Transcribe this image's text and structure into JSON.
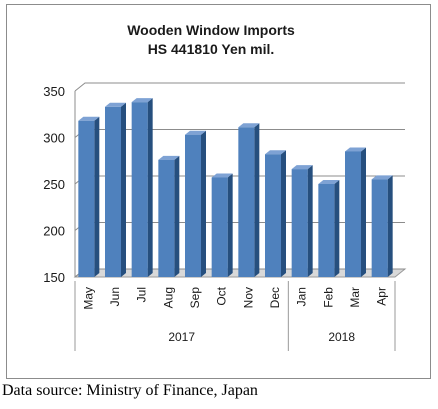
{
  "chart_data": {
    "type": "bar",
    "title": "Wooden Window Imports",
    "subtitle": "HS 441810 Yen mil.",
    "categories": [
      "May",
      "Jun",
      "Jul",
      "Aug",
      "Sep",
      "Oct",
      "Nov",
      "Dec",
      "Jan",
      "Feb",
      "Mar",
      "Apr"
    ],
    "groups": [
      {
        "label": "2017",
        "count": 8
      },
      {
        "label": "2018",
        "count": 4
      }
    ],
    "values": [
      318,
      333,
      338,
      276,
      303,
      257,
      311,
      282,
      266,
      250,
      285,
      255
    ],
    "ylim": [
      150,
      350
    ],
    "yticks": [
      150,
      200,
      250,
      300,
      350
    ],
    "xlabel": "",
    "ylabel": "",
    "grid": true,
    "legend": "none",
    "bar_color": "#4f81bd",
    "bar_top_color": "#7ea2d4",
    "bar_side_color": "#264f7e"
  },
  "source_note": "Data source: Ministry of Finance, Japan"
}
